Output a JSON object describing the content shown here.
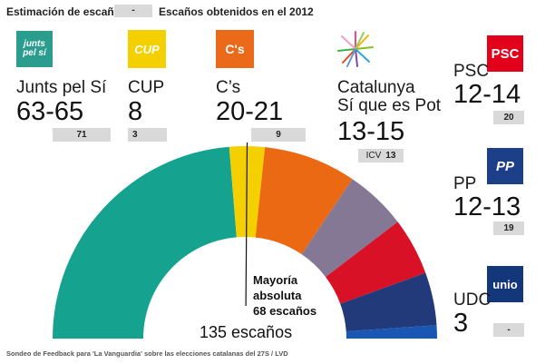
{
  "legend": {
    "estimation_label": "Estimación de escaños",
    "previous_label": "Escaños obtenidos en el 2012",
    "previous_sample": "-"
  },
  "parties": [
    {
      "id": "jxsi",
      "logo_text": "junts pel sí",
      "name": "Junts pel Sí",
      "range": "63-65",
      "prev": "71",
      "logo_color": "#2a9d8f"
    },
    {
      "id": "cup",
      "logo_text": "CUP",
      "name": "CUP",
      "range": "8",
      "prev": "3",
      "logo_color": "#f5d000"
    },
    {
      "id": "cs",
      "logo_text": "C's",
      "name": "C’s",
      "range": "20-21",
      "prev": "9",
      "logo_color": "#eb6a1a"
    },
    {
      "id": "csqp",
      "logo_text": "",
      "name_line1": "Catalunya",
      "name_line2": "Sí que es Pot",
      "range": "13-15",
      "prev_prefix": "ICV",
      "prev": "13"
    },
    {
      "id": "psc",
      "logo_text": "PSC",
      "name": "PSC",
      "range": "12-14",
      "prev": "20",
      "logo_color": "#e3001b"
    },
    {
      "id": "pp",
      "logo_text": "PP",
      "name": "PP",
      "range": "12-13",
      "prev": "19",
      "logo_color": "#1d3f8a"
    },
    {
      "id": "udc",
      "logo_text": "unio",
      "name": "UDC",
      "range": "3",
      "prev": "-",
      "logo_color": "#13377a"
    }
  ],
  "majority": {
    "line1": "Mayoría",
    "line2": "absoluta",
    "line3": "68 escaños"
  },
  "total_label": "135 escaños",
  "footer": "Sondeo de Feedback para 'La Vanguardia' sobre las elecciones catalanas del 27S / LVD",
  "chart_data": {
    "type": "pie",
    "subtype": "parliament-semicircle",
    "total": 135,
    "majority": 68,
    "categories": [
      "Junts pel Sí",
      "CUP",
      "C’s",
      "Catalunya Sí que es Pot",
      "PSC",
      "PP",
      "UDC"
    ],
    "values": [
      64,
      8,
      21,
      14,
      13,
      12,
      3
    ],
    "estimate_ranges": [
      "63-65",
      "8",
      "20-21",
      "13-15",
      "12-14",
      "12-13",
      "3"
    ],
    "previous_2012": [
      "71",
      "3",
      "9",
      "13",
      "20",
      "19",
      "-"
    ],
    "colors": [
      "#15a38f",
      "#f5d000",
      "#ec6913",
      "#857895",
      "#d81127",
      "#223a7a",
      "#1a56b4"
    ],
    "ranged_parties": [
      "Junts pel Sí",
      "C’s",
      "Catalunya Sí que es Pot",
      "PSC",
      "PP"
    ],
    "range_colors": [
      "#0f7f70",
      "#b94e0c",
      "#665a75",
      "#a50d1e",
      "#16285a"
    ]
  }
}
